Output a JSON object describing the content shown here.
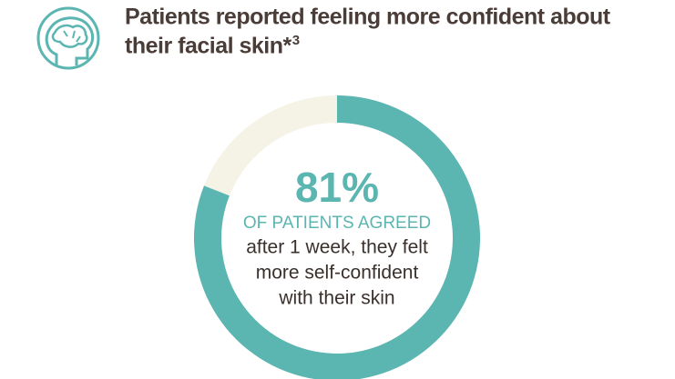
{
  "chart_data": {
    "type": "donut",
    "title": [
      "Patients reported feeling more confident about",
      "their facial skin*"
    ],
    "title_note": "3",
    "categories": [
      "OF PATIENTS AGREED",
      null
    ],
    "values": [
      81,
      19
    ],
    "value_labels": [
      "81%",
      null
    ],
    "colors": [
      "#5bb5b1",
      "#f5f3e6"
    ],
    "annotation": [
      "after 1 week, they felt",
      "more self-confident",
      "with their skin"
    ]
  }
}
